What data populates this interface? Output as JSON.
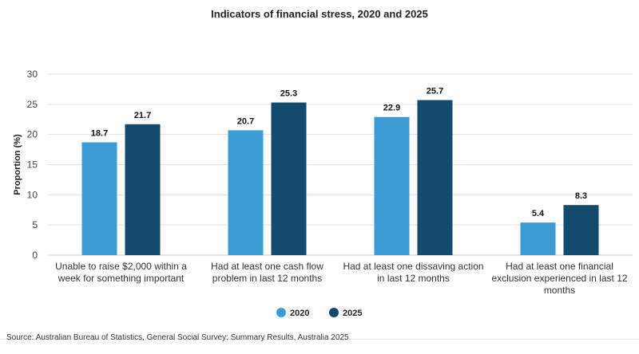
{
  "chart_data": {
    "type": "bar",
    "title": "Indicators of financial stress, 2020 and 2025",
    "ylabel": "Proportion (%)",
    "ylim": [
      0,
      30
    ],
    "yticks": [
      0,
      5,
      10,
      15,
      20,
      25,
      30
    ],
    "grid": true,
    "legend_position": "bottom",
    "categories": [
      [
        "Unable to raise $2,000 within a",
        "week for something important"
      ],
      [
        "Had at least one cash flow",
        "problem in last 12 months"
      ],
      [
        "Had at least one dissaving action",
        "in last 12 months"
      ],
      [
        "Had at least one financial",
        "exclusion experienced in last 12",
        "months"
      ]
    ],
    "series": [
      {
        "name": "2020",
        "color": "#3d9dd3",
        "values": [
          18.7,
          20.7,
          22.9,
          5.4
        ]
      },
      {
        "name": "2025",
        "color": "#144a6e",
        "values": [
          21.7,
          25.3,
          25.7,
          8.3
        ]
      }
    ]
  },
  "source": "Source: Australian Bureau of Statistics, General Social Survey: Summary Results, Australia 2025"
}
